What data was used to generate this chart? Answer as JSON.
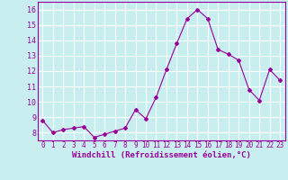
{
  "x": [
    0,
    1,
    2,
    3,
    4,
    5,
    6,
    7,
    8,
    9,
    10,
    11,
    12,
    13,
    14,
    15,
    16,
    17,
    18,
    19,
    20,
    21,
    22,
    23
  ],
  "y": [
    8.8,
    8.0,
    8.2,
    8.3,
    8.4,
    7.7,
    7.9,
    8.1,
    8.3,
    9.5,
    8.9,
    10.3,
    12.1,
    13.8,
    15.4,
    16.0,
    15.4,
    13.4,
    13.1,
    12.7,
    10.8,
    10.1,
    12.1,
    11.4
  ],
  "line_color": "#990099",
  "marker": "D",
  "marker_size": 2.0,
  "xlabel": "Windchill (Refroidissement éolien,°C)",
  "xlabel_fontsize": 6.5,
  "bg_color": "#c8eef0",
  "grid_color": "#ffffff",
  "tick_color": "#990099",
  "label_color": "#990099",
  "xlim": [
    -0.5,
    23.5
  ],
  "ylim": [
    7.5,
    16.5
  ],
  "yticks": [
    8,
    9,
    10,
    11,
    12,
    13,
    14,
    15,
    16
  ],
  "xticks": [
    0,
    1,
    2,
    3,
    4,
    5,
    6,
    7,
    8,
    9,
    10,
    11,
    12,
    13,
    14,
    15,
    16,
    17,
    18,
    19,
    20,
    21,
    22,
    23
  ],
  "tick_fontsize": 5.5,
  "ytick_fontsize": 6.0
}
